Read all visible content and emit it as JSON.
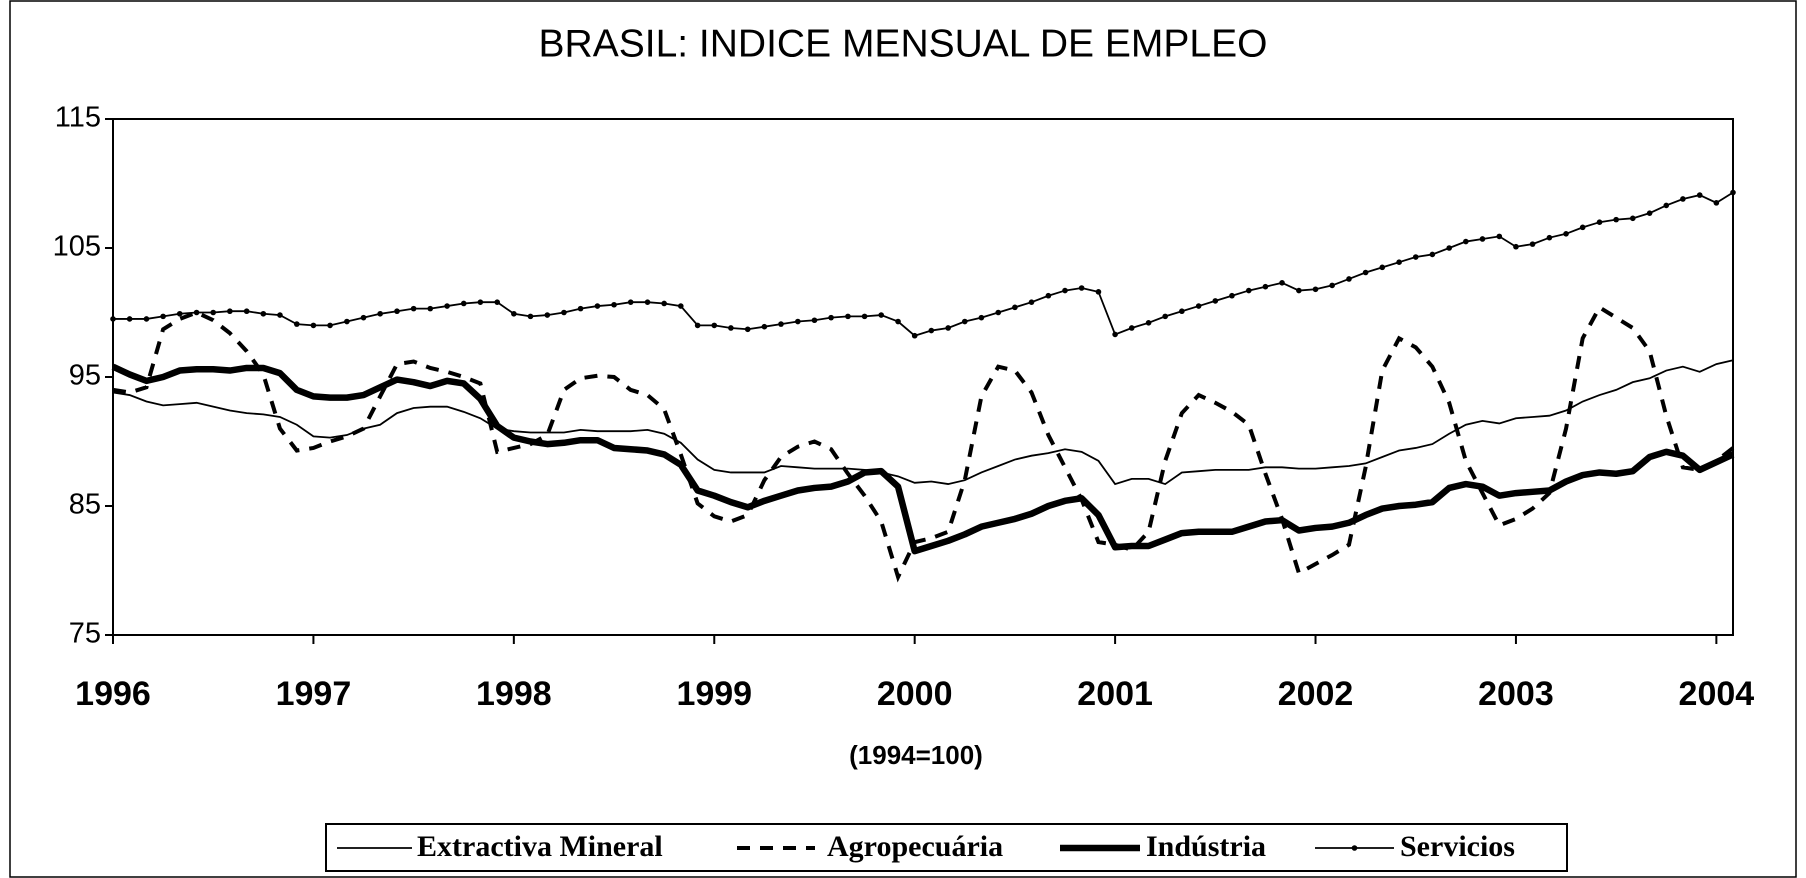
{
  "chart_data": {
    "type": "line",
    "title": "BRASIL: INDICE MENSUAL DE EMPLEO",
    "x_label": "(1994=100)",
    "x": [
      1996,
      1996.083,
      1996.167,
      1996.25,
      1996.333,
      1996.417,
      1996.5,
      1996.583,
      1996.667,
      1996.75,
      1996.833,
      1996.917,
      1997,
      1997.083,
      1997.167,
      1997.25,
      1997.333,
      1997.417,
      1997.5,
      1997.583,
      1997.667,
      1997.75,
      1997.833,
      1997.917,
      1998,
      1998.083,
      1998.167,
      1998.25,
      1998.333,
      1998.417,
      1998.5,
      1998.583,
      1998.667,
      1998.75,
      1998.833,
      1998.917,
      1999,
      1999.083,
      1999.167,
      1999.25,
      1999.333,
      1999.417,
      1999.5,
      1999.583,
      1999.667,
      1999.75,
      1999.833,
      1999.917,
      2000,
      2000.083,
      2000.167,
      2000.25,
      2000.333,
      2000.417,
      2000.5,
      2000.583,
      2000.667,
      2000.75,
      2000.833,
      2000.917,
      2001,
      2001.083,
      2001.167,
      2001.25,
      2001.333,
      2001.417,
      2001.5,
      2001.583,
      2001.667,
      2001.75,
      2001.833,
      2001.917,
      2002,
      2002.083,
      2002.167,
      2002.25,
      2002.333,
      2002.417,
      2002.5,
      2002.583,
      2002.667,
      2002.75,
      2002.833,
      2002.917,
      2003,
      2003.083,
      2003.167,
      2003.25,
      2003.333,
      2003.417,
      2003.5,
      2003.583,
      2003.667,
      2003.75,
      2003.833,
      2003.917,
      2004,
      2004.083
    ],
    "series": [
      {
        "name": "Extractiva Mineral",
        "color": "#000000",
        "style": "thin",
        "values": [
          93.8,
          93.6,
          93.1,
          92.8,
          92.9,
          93.0,
          92.7,
          92.4,
          92.2,
          92.1,
          91.9,
          91.3,
          90.4,
          90.3,
          90.5,
          91.0,
          91.3,
          92.2,
          92.6,
          92.7,
          92.7,
          92.3,
          91.8,
          91.0,
          90.8,
          90.7,
          90.7,
          90.7,
          90.9,
          90.8,
          90.8,
          90.8,
          90.9,
          90.6,
          89.9,
          88.6,
          87.8,
          87.6,
          87.6,
          87.6,
          88.1,
          88.0,
          87.9,
          87.9,
          87.9,
          87.8,
          87.6,
          87.3,
          86.8,
          86.9,
          86.7,
          87.0,
          87.6,
          88.1,
          88.6,
          88.9,
          89.1,
          89.4,
          89.2,
          88.5,
          86.7,
          87.1,
          87.1,
          86.7,
          87.6,
          87.7,
          87.8,
          87.8,
          87.8,
          88.0,
          88.0,
          87.9,
          87.9,
          88.0,
          88.1,
          88.3,
          88.8,
          89.3,
          89.5,
          89.8,
          90.6,
          91.3,
          91.6,
          91.4,
          91.8,
          91.9,
          92.0,
          92.4,
          93.1,
          93.6,
          94.0,
          94.6,
          94.9,
          95.5,
          95.8,
          95.4,
          96.0,
          96.3
        ]
      },
      {
        "name": "Agropecuária",
        "color": "#000000",
        "style": "dashed",
        "values": [
          94.0,
          93.8,
          94.2,
          98.7,
          99.5,
          100.0,
          99.4,
          98.4,
          97.0,
          95.2,
          91.0,
          89.3,
          89.5,
          90.0,
          90.4,
          91.0,
          93.5,
          96.0,
          96.2,
          95.7,
          95.4,
          95.0,
          94.5,
          89.2,
          89.5,
          89.8,
          90.5,
          94.0,
          94.9,
          95.1,
          95.0,
          94.0,
          93.6,
          92.5,
          89.0,
          85.2,
          84.2,
          83.8,
          84.3,
          87.0,
          88.8,
          89.6,
          90.0,
          89.4,
          87.5,
          85.8,
          83.8,
          79.5,
          82.2,
          82.5,
          83.0,
          87.0,
          93.5,
          95.8,
          95.5,
          93.8,
          90.5,
          88.0,
          85.5,
          82.2,
          82.0,
          81.6,
          83.0,
          88.5,
          92.2,
          93.6,
          93.0,
          92.3,
          91.3,
          87.5,
          84.0,
          79.8,
          80.5,
          81.2,
          82.0,
          88.0,
          95.5,
          98.0,
          97.3,
          95.8,
          93.0,
          88.5,
          86.0,
          83.5,
          84.0,
          84.8,
          86.0,
          91.0,
          98.0,
          100.4,
          99.6,
          98.8,
          97.0,
          92.0,
          88.0,
          87.8,
          88.5,
          89.5
        ]
      },
      {
        "name": "Indústria",
        "color": "#000000",
        "style": "thick",
        "values": [
          95.8,
          95.2,
          94.7,
          95.0,
          95.5,
          95.6,
          95.6,
          95.5,
          95.7,
          95.7,
          95.3,
          94.0,
          93.5,
          93.4,
          93.4,
          93.6,
          94.2,
          94.8,
          94.6,
          94.3,
          94.7,
          94.5,
          93.3,
          91.2,
          90.3,
          90.0,
          89.8,
          89.9,
          90.1,
          90.1,
          89.5,
          89.4,
          89.3,
          89.0,
          88.2,
          86.2,
          85.8,
          85.3,
          84.9,
          85.4,
          85.8,
          86.2,
          86.4,
          86.5,
          86.9,
          87.6,
          87.7,
          86.5,
          81.5,
          81.9,
          82.3,
          82.8,
          83.4,
          83.7,
          84.0,
          84.4,
          85.0,
          85.4,
          85.6,
          84.3,
          81.8,
          81.9,
          81.9,
          82.4,
          82.9,
          83.0,
          83.0,
          83.0,
          83.4,
          83.8,
          83.9,
          83.1,
          83.3,
          83.4,
          83.7,
          84.3,
          84.8,
          85.0,
          85.1,
          85.3,
          86.4,
          86.7,
          86.5,
          85.8,
          86.0,
          86.1,
          86.2,
          86.9,
          87.4,
          87.6,
          87.5,
          87.7,
          88.8,
          89.2,
          88.9,
          87.8,
          88.4,
          89.0
        ]
      },
      {
        "name": "Servicios",
        "color": "#000000",
        "style": "markers",
        "values": [
          99.5,
          99.5,
          99.5,
          99.7,
          99.9,
          100.0,
          100.0,
          100.1,
          100.1,
          99.9,
          99.8,
          99.1,
          99.0,
          99.0,
          99.3,
          99.6,
          99.9,
          100.1,
          100.3,
          100.3,
          100.5,
          100.7,
          100.8,
          100.8,
          99.9,
          99.7,
          99.8,
          100.0,
          100.3,
          100.5,
          100.6,
          100.8,
          100.8,
          100.7,
          100.5,
          99.0,
          99.0,
          98.8,
          98.7,
          98.9,
          99.1,
          99.3,
          99.4,
          99.6,
          99.7,
          99.7,
          99.8,
          99.3,
          98.2,
          98.6,
          98.8,
          99.3,
          99.6,
          100.0,
          100.4,
          100.8,
          101.3,
          101.7,
          101.9,
          101.6,
          98.3,
          98.8,
          99.2,
          99.7,
          100.1,
          100.5,
          100.9,
          101.3,
          101.7,
          102.0,
          102.3,
          101.7,
          101.8,
          102.1,
          102.6,
          103.1,
          103.5,
          103.9,
          104.3,
          104.5,
          105.0,
          105.5,
          105.7,
          105.9,
          105.1,
          105.3,
          105.8,
          106.1,
          106.6,
          107.0,
          107.2,
          107.3,
          107.7,
          108.3,
          108.8,
          109.1,
          108.5,
          109.3
        ]
      }
    ],
    "xlim": [
      1996,
      2004.083
    ],
    "xticks": [
      1996,
      1997,
      1998,
      1999,
      2000,
      2001,
      2002,
      2003,
      2004
    ],
    "ylim": [
      75,
      115
    ],
    "yticks": [
      75,
      85,
      95,
      105,
      115
    ],
    "grid": false,
    "legend": "bottom"
  }
}
